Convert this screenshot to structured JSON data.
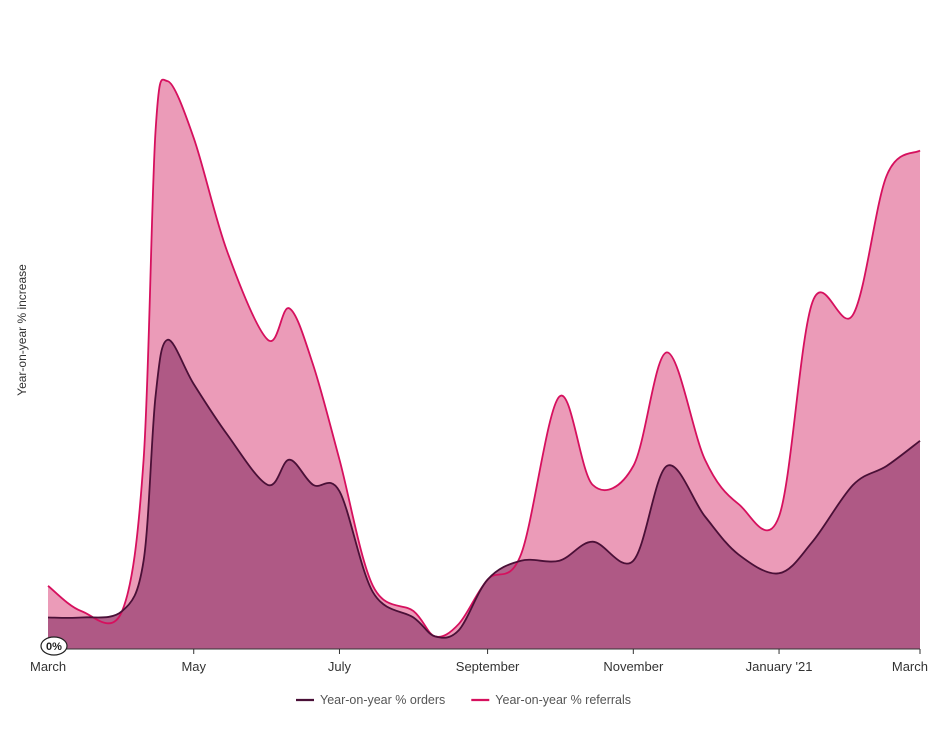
{
  "chart_data": {
    "type": "area",
    "title": "",
    "xlabel": "",
    "ylabel": "Year-on-year % increase",
    "x_ticks": [
      "March",
      "May",
      "July",
      "September",
      "November",
      "January '21",
      "March"
    ],
    "y_ticks": [
      "0%"
    ],
    "ylim": [
      0,
      100
    ],
    "x": [
      "2020-03-01",
      "2020-03-15",
      "2020-04-01",
      "2020-04-10",
      "2020-04-15",
      "2020-04-20",
      "2020-05-01",
      "2020-05-15",
      "2020-06-01",
      "2020-06-10",
      "2020-06-20",
      "2020-07-01",
      "2020-07-15",
      "2020-08-01",
      "2020-08-10",
      "2020-08-20",
      "2020-09-01",
      "2020-09-15",
      "2020-10-01",
      "2020-10-15",
      "2020-11-01",
      "2020-11-15",
      "2020-12-01",
      "2020-12-15",
      "2021-01-01",
      "2021-01-15",
      "2021-02-01",
      "2021-02-15",
      "2021-03-01"
    ],
    "series": [
      {
        "name": "Year-on-year % orders",
        "color": "#4a1037",
        "fill": "#a85280",
        "values": [
          5,
          5,
          6,
          14,
          40,
          49,
          42,
          34,
          26,
          30,
          26,
          25,
          9,
          5,
          2,
          3,
          11,
          14,
          14,
          17,
          14,
          29,
          21,
          15,
          12,
          17,
          26,
          29,
          33
        ]
      },
      {
        "name": "Year-on-year % referrals",
        "color": "#d6105e",
        "fill": "#eb9bb8",
        "values": [
          10,
          6,
          6,
          30,
          82,
          90,
          81,
          63,
          49,
          54,
          45,
          30,
          10,
          6,
          2,
          4,
          11,
          15,
          40,
          26,
          29,
          47,
          30,
          23,
          21,
          55,
          53,
          75,
          79
        ]
      }
    ],
    "grid": false,
    "legend": "bottom-center"
  }
}
